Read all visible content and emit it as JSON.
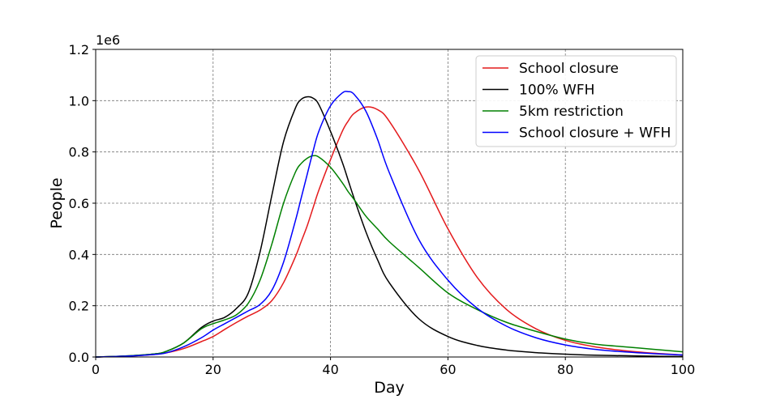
{
  "chart_data": {
    "type": "line",
    "xlabel": "Day",
    "ylabel": "People",
    "offset_text": "1e6",
    "xlim": [
      0,
      100
    ],
    "ylim": [
      0,
      1.2
    ],
    "x_scale_factor": 1000000,
    "xticks": [
      0,
      20,
      40,
      60,
      80,
      100
    ],
    "yticks": [
      0.0,
      0.2,
      0.4,
      0.6,
      0.8,
      1.0,
      1.2
    ],
    "xtick_labels": [
      "0",
      "20",
      "40",
      "60",
      "80",
      "100"
    ],
    "ytick_labels": [
      "0.0",
      "0.2",
      "0.4",
      "0.6",
      "0.8",
      "1.0",
      "1.2"
    ],
    "grid": true,
    "legend_position": "top-right",
    "x": [
      0,
      5,
      10,
      12,
      15,
      18,
      20,
      22,
      24,
      26,
      28,
      30,
      32,
      34,
      35,
      36,
      37,
      38,
      40,
      42,
      43,
      44,
      46,
      48,
      50,
      55,
      60,
      65,
      70,
      75,
      80,
      85,
      90,
      95,
      100
    ],
    "series": [
      {
        "name": "School closure",
        "color": "#e41a1c",
        "values": [
          0.0,
          0.003,
          0.01,
          0.016,
          0.033,
          0.06,
          0.08,
          0.108,
          0.135,
          0.16,
          0.183,
          0.22,
          0.29,
          0.39,
          0.45,
          0.51,
          0.58,
          0.65,
          0.77,
          0.88,
          0.92,
          0.95,
          0.975,
          0.965,
          0.92,
          0.73,
          0.5,
          0.31,
          0.185,
          0.11,
          0.065,
          0.04,
          0.025,
          0.015,
          0.008
        ]
      },
      {
        "name": "100% WFH",
        "color": "#000000",
        "values": [
          0.0,
          0.004,
          0.012,
          0.022,
          0.055,
          0.115,
          0.14,
          0.155,
          0.19,
          0.25,
          0.41,
          0.63,
          0.84,
          0.97,
          1.005,
          1.015,
          1.01,
          0.985,
          0.88,
          0.76,
          0.69,
          0.62,
          0.49,
          0.38,
          0.29,
          0.15,
          0.08,
          0.045,
          0.027,
          0.017,
          0.011,
          0.007,
          0.005,
          0.003,
          0.002
        ]
      },
      {
        "name": "5km restriction",
        "color": "#008000",
        "values": [
          0.0,
          0.004,
          0.012,
          0.022,
          0.055,
          0.11,
          0.13,
          0.145,
          0.165,
          0.21,
          0.3,
          0.44,
          0.6,
          0.72,
          0.755,
          0.775,
          0.785,
          0.78,
          0.74,
          0.68,
          0.645,
          0.615,
          0.55,
          0.5,
          0.45,
          0.35,
          0.25,
          0.185,
          0.135,
          0.1,
          0.07,
          0.05,
          0.04,
          0.03,
          0.02
        ]
      },
      {
        "name": "School closure + WFH",
        "color": "#0000ff",
        "values": [
          0.0,
          0.003,
          0.01,
          0.016,
          0.04,
          0.075,
          0.105,
          0.13,
          0.155,
          0.18,
          0.205,
          0.26,
          0.37,
          0.53,
          0.62,
          0.71,
          0.8,
          0.88,
          0.98,
          1.03,
          1.035,
          1.025,
          0.96,
          0.85,
          0.72,
          0.46,
          0.3,
          0.19,
          0.12,
          0.075,
          0.047,
          0.03,
          0.02,
          0.013,
          0.008
        ]
      }
    ]
  }
}
